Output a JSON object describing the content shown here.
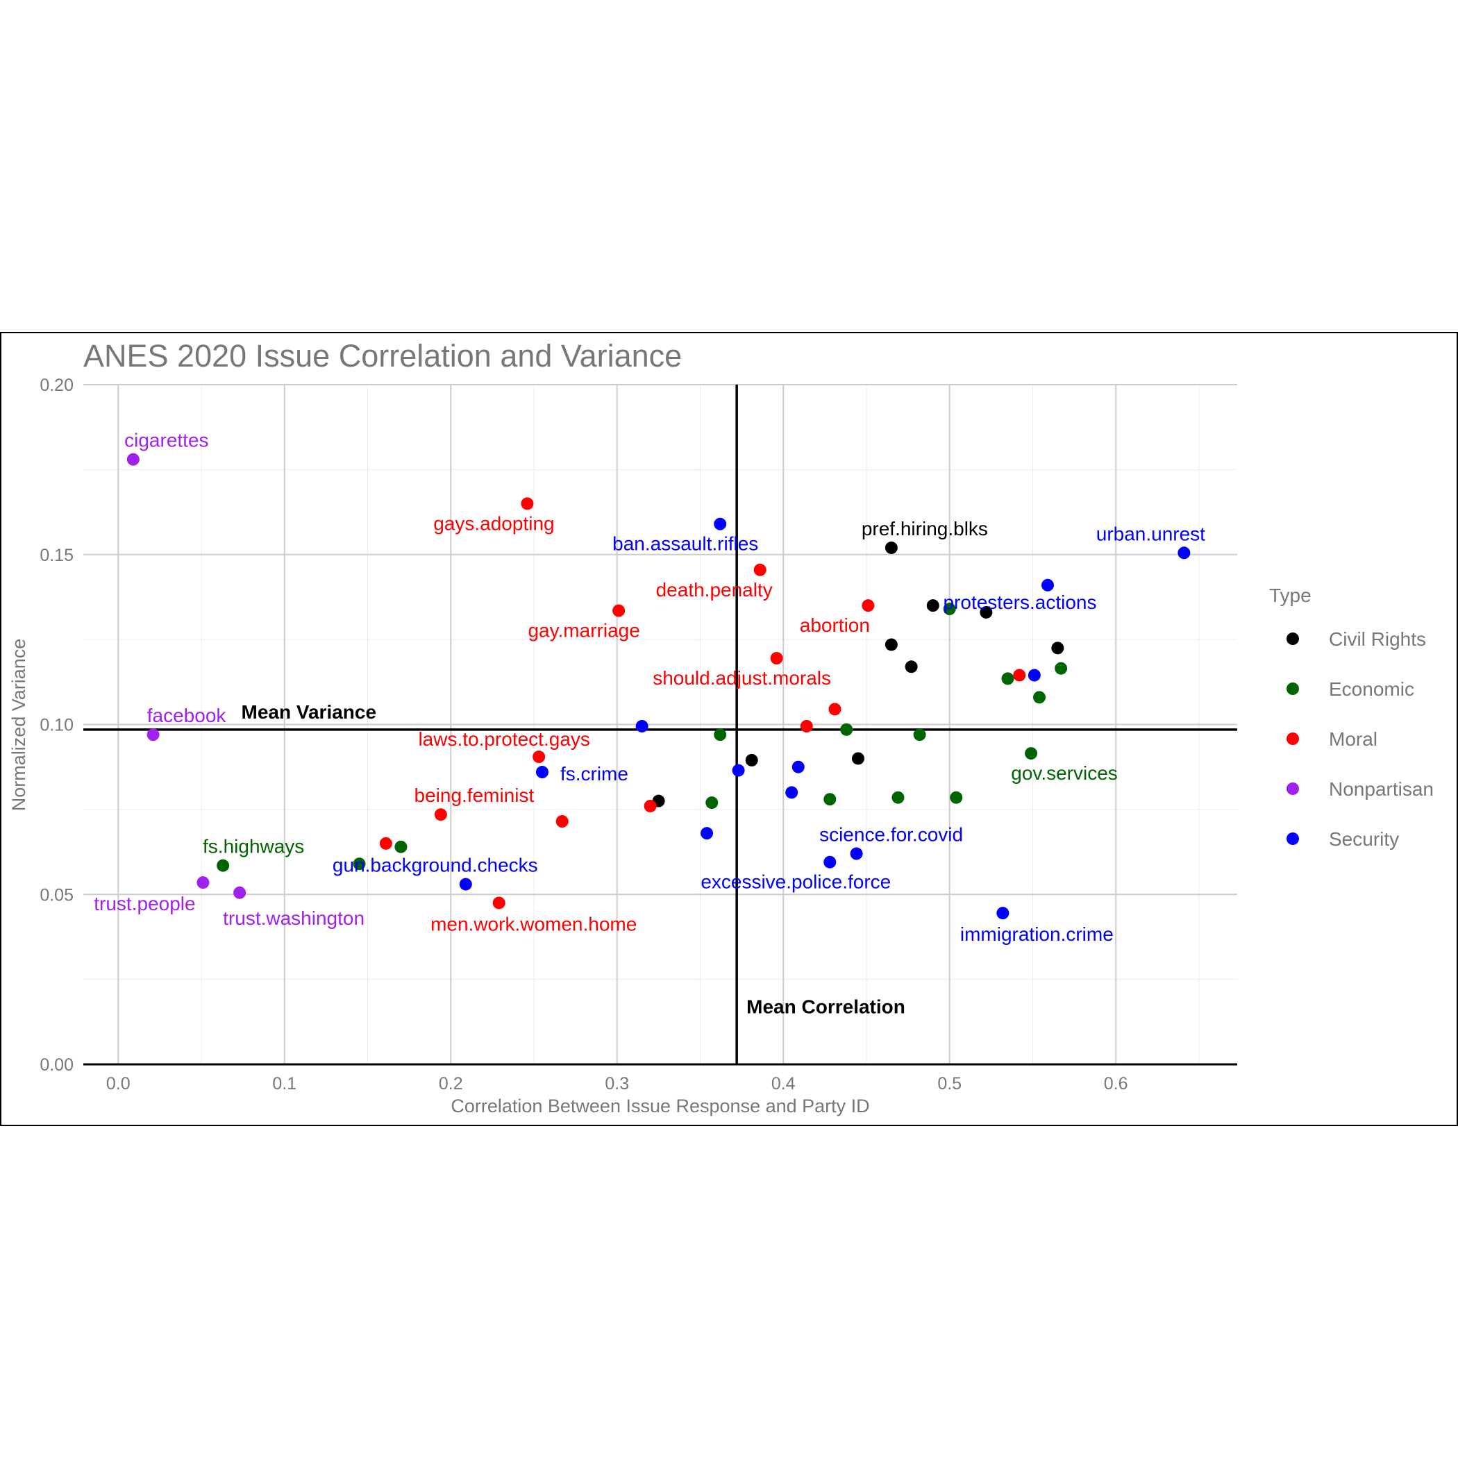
{
  "chart_data": {
    "type": "scatter",
    "title": "ANES 2020 Issue Correlation and Variance",
    "xlabel": "Correlation Between Issue Response and Party ID",
    "ylabel": "Normalized Variance",
    "xlim": [
      -0.021,
      0.673
    ],
    "ylim": [
      0,
      0.2
    ],
    "x_ticks": [
      0.0,
      0.1,
      0.2,
      0.3,
      0.4,
      0.5,
      0.6
    ],
    "x_tick_labels": [
      "0.0",
      "0.1",
      "0.2",
      "0.3",
      "0.4",
      "0.5",
      "0.6"
    ],
    "y_ticks": [
      0.0,
      0.05,
      0.1,
      0.15,
      0.2
    ],
    "y_tick_labels": [
      "0.00",
      "0.05",
      "0.10",
      "0.15",
      "0.20"
    ],
    "grid": true,
    "legend": {
      "title": "Type",
      "position": "right",
      "entries": [
        {
          "name": "Civil Rights",
          "color": "#000000"
        },
        {
          "name": "Economic",
          "color": "#006400"
        },
        {
          "name": "Moral",
          "color": "#ff0000"
        },
        {
          "name": "Nonpartisan",
          "color": "#a020f0"
        },
        {
          "name": "Security",
          "color": "#0000ff"
        }
      ]
    },
    "reference_lines": {
      "mean_correlation": {
        "x": 0.372,
        "label": "Mean Correlation"
      },
      "mean_variance": {
        "y": 0.0985,
        "label": "Mean Variance"
      }
    },
    "series": [
      {
        "name": "Civil Rights",
        "color": "#000000",
        "points": [
          {
            "x": 0.465,
            "y": 0.152,
            "label": "pref.hiring.blks"
          },
          {
            "x": 0.49,
            "y": 0.135,
            "label": ""
          },
          {
            "x": 0.522,
            "y": 0.133,
            "label": ""
          },
          {
            "x": 0.465,
            "y": 0.1235,
            "label": ""
          },
          {
            "x": 0.565,
            "y": 0.1225,
            "label": ""
          },
          {
            "x": 0.477,
            "y": 0.117,
            "label": ""
          },
          {
            "x": 0.381,
            "y": 0.0895,
            "label": ""
          },
          {
            "x": 0.445,
            "y": 0.09,
            "label": ""
          },
          {
            "x": 0.325,
            "y": 0.0775,
            "label": ""
          }
        ]
      },
      {
        "name": "Economic",
        "color": "#006400",
        "points": [
          {
            "x": 0.5,
            "y": 0.134,
            "label": ""
          },
          {
            "x": 0.567,
            "y": 0.1165,
            "label": ""
          },
          {
            "x": 0.535,
            "y": 0.1135,
            "label": ""
          },
          {
            "x": 0.554,
            "y": 0.108,
            "label": ""
          },
          {
            "x": 0.438,
            "y": 0.0985,
            "label": ""
          },
          {
            "x": 0.482,
            "y": 0.097,
            "label": ""
          },
          {
            "x": 0.362,
            "y": 0.097,
            "label": ""
          },
          {
            "x": 0.549,
            "y": 0.0915,
            "label": "gov.services"
          },
          {
            "x": 0.357,
            "y": 0.077,
            "label": ""
          },
          {
            "x": 0.428,
            "y": 0.078,
            "label": ""
          },
          {
            "x": 0.469,
            "y": 0.0785,
            "label": ""
          },
          {
            "x": 0.504,
            "y": 0.0785,
            "label": ""
          },
          {
            "x": 0.17,
            "y": 0.064,
            "label": ""
          },
          {
            "x": 0.145,
            "y": 0.059,
            "label": ""
          },
          {
            "x": 0.063,
            "y": 0.0585,
            "label": "fs.highways"
          }
        ]
      },
      {
        "name": "Moral",
        "color": "#ff0000",
        "points": [
          {
            "x": 0.246,
            "y": 0.165,
            "label": "gays.adopting"
          },
          {
            "x": 0.386,
            "y": 0.1455,
            "label": "death.penalty"
          },
          {
            "x": 0.301,
            "y": 0.1335,
            "label": "gay.marriage"
          },
          {
            "x": 0.451,
            "y": 0.135,
            "label": "abortion"
          },
          {
            "x": 0.396,
            "y": 0.1195,
            "label": "should.adjust.morals"
          },
          {
            "x": 0.542,
            "y": 0.1145,
            "label": ""
          },
          {
            "x": 0.431,
            "y": 0.1045,
            "label": ""
          },
          {
            "x": 0.414,
            "y": 0.0995,
            "label": ""
          },
          {
            "x": 0.253,
            "y": 0.0905,
            "label": "laws.to.protect.gays"
          },
          {
            "x": 0.194,
            "y": 0.0735,
            "label": "being.feminist"
          },
          {
            "x": 0.267,
            "y": 0.0715,
            "label": ""
          },
          {
            "x": 0.32,
            "y": 0.076,
            "label": ""
          },
          {
            "x": 0.161,
            "y": 0.065,
            "label": ""
          },
          {
            "x": 0.229,
            "y": 0.0475,
            "label": "men.work.women.home"
          }
        ]
      },
      {
        "name": "Nonpartisan",
        "color": "#a020f0",
        "points": [
          {
            "x": 0.009,
            "y": 0.178,
            "label": "cigarettes"
          },
          {
            "x": 0.021,
            "y": 0.097,
            "label": "facebook"
          },
          {
            "x": 0.051,
            "y": 0.0535,
            "label": "trust.people"
          },
          {
            "x": 0.073,
            "y": 0.0505,
            "label": "trust.washington"
          }
        ]
      },
      {
        "name": "Security",
        "color": "#0000ff",
        "points": [
          {
            "x": 0.641,
            "y": 0.1505,
            "label": "urban.unrest"
          },
          {
            "x": 0.362,
            "y": 0.159,
            "label": "ban.assault.rifles"
          },
          {
            "x": 0.559,
            "y": 0.141,
            "label": "protesters.actions"
          },
          {
            "x": 0.551,
            "y": 0.1145,
            "label": ""
          },
          {
            "x": 0.315,
            "y": 0.0995,
            "label": ""
          },
          {
            "x": 0.255,
            "y": 0.086,
            "label": "fs.crime"
          },
          {
            "x": 0.373,
            "y": 0.0865,
            "label": ""
          },
          {
            "x": 0.409,
            "y": 0.0875,
            "label": ""
          },
          {
            "x": 0.405,
            "y": 0.08,
            "label": ""
          },
          {
            "x": 0.354,
            "y": 0.068,
            "label": ""
          },
          {
            "x": 0.444,
            "y": 0.062,
            "label": "science.for.covid"
          },
          {
            "x": 0.428,
            "y": 0.0595,
            "label": "excessive.police.force"
          },
          {
            "x": 0.209,
            "y": 0.053,
            "label": "gun.background.checks"
          },
          {
            "x": 0.532,
            "y": 0.0445,
            "label": "immigration.crime"
          }
        ]
      }
    ]
  }
}
